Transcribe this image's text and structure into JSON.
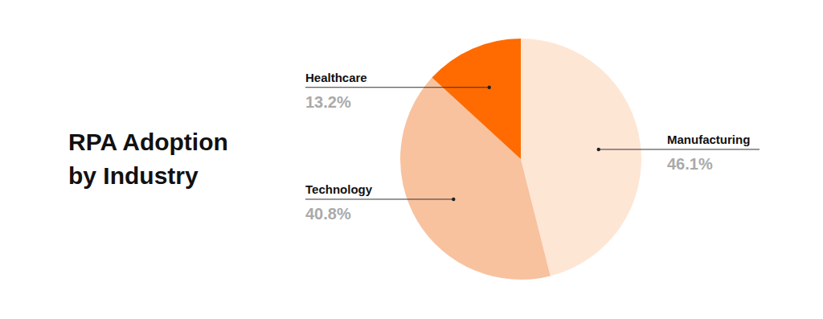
{
  "chart_data": {
    "type": "pie",
    "title": "RPA Adoption by Industry",
    "categories": [
      "Manufacturing",
      "Technology",
      "Healthcare"
    ],
    "values": [
      46.1,
      40.8,
      13.2
    ],
    "value_labels": [
      "46.1%",
      "40.8%",
      "13.2%"
    ],
    "colors": [
      "#fee6d5",
      "#f8c29f",
      "#ff6b00"
    ],
    "data_labels": true
  }
}
